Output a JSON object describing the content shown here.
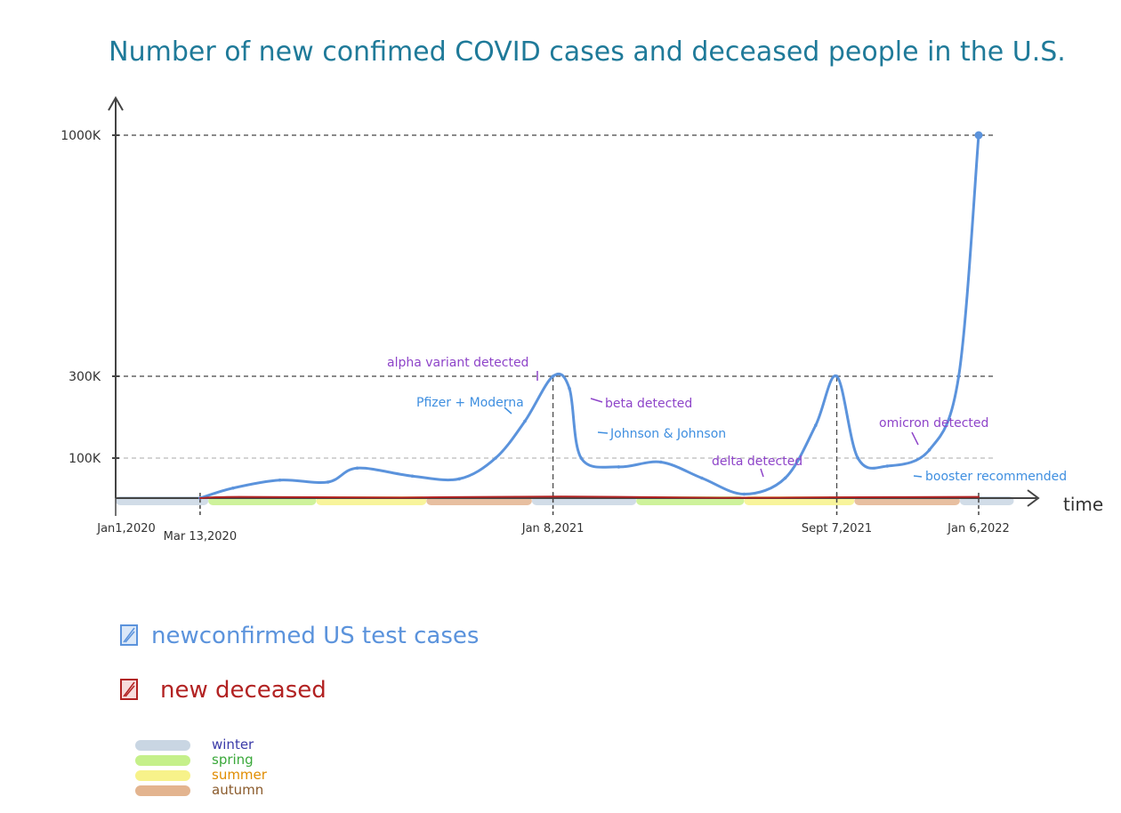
{
  "chart_data": {
    "type": "line",
    "title": "Number of new confimed COVID cases and deceased people in the U.S.",
    "xlabel": "time",
    "ylabel": "",
    "x_start": "2020-01-01",
    "x_end": "2022-02-05",
    "xlim": [
      "2020-01-01",
      "2022-02-05"
    ],
    "ylim": [
      0,
      1000000
    ],
    "y_scale": "piecewise",
    "yticks": [
      {
        "value": 100000,
        "label": "100K"
      },
      {
        "value": 300000,
        "label": "300K"
      },
      {
        "value": 1000000,
        "label": "1000K"
      }
    ],
    "xticks": [
      {
        "date": "2020-01-01",
        "label": "Jan1,2020"
      },
      {
        "date": "2020-03-13",
        "label": "Mar 13,2020"
      },
      {
        "date": "2021-01-08",
        "label": "Jan 8,2021"
      },
      {
        "date": "2021-09-07",
        "label": "Sept 7,2021"
      },
      {
        "date": "2022-01-06",
        "label": "Jan 6,2022"
      }
    ],
    "grid": true,
    "series": [
      {
        "name": "new confirmed US test cases",
        "color": "#5b93dc",
        "points": [
          [
            "2020-03-13",
            0
          ],
          [
            "2020-04-10",
            25000
          ],
          [
            "2020-05-20",
            45000
          ],
          [
            "2020-06-30",
            40000
          ],
          [
            "2020-07-25",
            75000
          ],
          [
            "2020-09-10",
            55000
          ],
          [
            "2020-10-20",
            48000
          ],
          [
            "2020-11-20",
            100000
          ],
          [
            "2020-12-15",
            190000
          ],
          [
            "2021-01-08",
            300000
          ],
          [
            "2021-01-22",
            270000
          ],
          [
            "2021-02-01",
            100000
          ],
          [
            "2021-03-05",
            78000
          ],
          [
            "2021-04-10",
            90000
          ],
          [
            "2021-05-15",
            50000
          ],
          [
            "2021-06-20",
            10000
          ],
          [
            "2021-07-25",
            50000
          ],
          [
            "2021-08-20",
            180000
          ],
          [
            "2021-09-07",
            300000
          ],
          [
            "2021-09-25",
            100000
          ],
          [
            "2021-10-20",
            80000
          ],
          [
            "2021-11-25",
            120000
          ],
          [
            "2021-12-20",
            300000
          ],
          [
            "2022-01-06",
            1000000
          ]
        ]
      },
      {
        "name": "new deceased",
        "color": "#b22222",
        "points": [
          [
            "2020-03-13",
            0
          ],
          [
            "2020-04-15",
            3000
          ],
          [
            "2020-09-01",
            1500
          ],
          [
            "2021-01-15",
            4000
          ],
          [
            "2021-06-01",
            800
          ],
          [
            "2021-09-01",
            2000
          ],
          [
            "2022-01-06",
            3000
          ]
        ]
      }
    ],
    "annotations": [
      {
        "text": "alpha variant detected",
        "date": "2020-12-20",
        "color": "#8e44c9"
      },
      {
        "text": "Pfizer + Moderna",
        "date": "2020-12-11",
        "color": "#3f8fe0"
      },
      {
        "text": "beta detected",
        "date": "2021-01-10",
        "color": "#8e44c9"
      },
      {
        "text": "Johnson & Johnson",
        "date": "2021-02-27",
        "color": "#3f8fe0"
      },
      {
        "text": "delta detected",
        "date": "2021-05-15",
        "color": "#8e44c9"
      },
      {
        "text": "omicron detected",
        "date": "2021-11-24",
        "color": "#8e44c9"
      },
      {
        "text": "booster recommended",
        "date": "2021-11-19",
        "color": "#3f8fe0"
      }
    ],
    "seasons": [
      {
        "season": "winter",
        "start": "2020-01-01",
        "end": "2020-03-20"
      },
      {
        "season": "spring",
        "start": "2020-03-20",
        "end": "2020-06-20"
      },
      {
        "season": "summer",
        "start": "2020-06-20",
        "end": "2020-09-22"
      },
      {
        "season": "autumn",
        "start": "2020-09-22",
        "end": "2020-12-21"
      },
      {
        "season": "winter",
        "start": "2020-12-21",
        "end": "2021-03-20"
      },
      {
        "season": "spring",
        "start": "2021-03-20",
        "end": "2021-06-20"
      },
      {
        "season": "summer",
        "start": "2021-06-20",
        "end": "2021-09-22"
      },
      {
        "season": "autumn",
        "start": "2021-09-22",
        "end": "2021-12-21"
      },
      {
        "season": "winter",
        "start": "2021-12-21",
        "end": "2022-02-05"
      }
    ]
  },
  "legend": {
    "cases_label": "newconfirmed US test cases",
    "deceased_label": "new deceased",
    "seasons": [
      {
        "name": "winter",
        "color": "#c9d6e3",
        "text_color": "#3a3aa8"
      },
      {
        "name": "spring",
        "color": "#c5f08a",
        "text_color": "#3aa83a"
      },
      {
        "name": "summer",
        "color": "#f7f28a",
        "text_color": "#e08c00"
      },
      {
        "name": "autumn",
        "color": "#e3b48f",
        "text_color": "#8a5a2b"
      }
    ]
  },
  "colors": {
    "cases": "#5b93dc",
    "deceased": "#b22222",
    "title": "#1f7a99",
    "annotation_purple": "#8e44c9",
    "annotation_blue": "#3f8fe0"
  }
}
